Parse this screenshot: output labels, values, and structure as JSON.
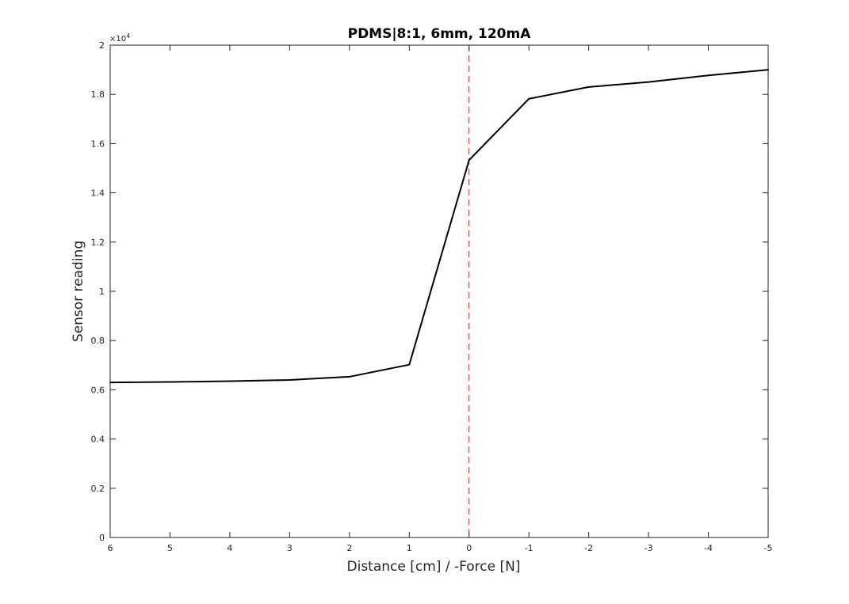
{
  "chart_data": {
    "type": "line",
    "title": "PDMS|8:1, 6mm, 120mA",
    "xlabel": "Distance [cm] / -Force [N]",
    "ylabel": "Sensor reading",
    "x_axis_reversed": true,
    "xlim": [
      -5,
      6
    ],
    "ylim": [
      0,
      20000
    ],
    "x_ticks": [
      6,
      5,
      4,
      3,
      2,
      1,
      0,
      -1,
      -2,
      -3,
      -4,
      -5
    ],
    "x_tick_labels": [
      "6",
      "5",
      "4",
      "3",
      "2",
      "1",
      "0",
      "-1",
      "-2",
      "-3",
      "-4",
      "-5"
    ],
    "y_ticks": [
      0,
      2000,
      4000,
      6000,
      8000,
      10000,
      12000,
      14000,
      16000,
      18000,
      20000
    ],
    "y_tick_labels": [
      "0",
      "0.2",
      "0.4",
      "0.6",
      "0.8",
      "1",
      "1.2",
      "1.4",
      "1.6",
      "1.8",
      "2"
    ],
    "y_exponent_label": "×10",
    "y_exponent_power": "4",
    "grid": false,
    "series": [
      {
        "x": [
          6,
          5,
          4,
          3,
          2,
          1,
          0,
          -1,
          -2,
          -3,
          -4,
          -5
        ],
        "y": [
          6300,
          6320,
          6350,
          6400,
          6530,
          7020,
          15330,
          17820,
          18300,
          18500,
          18770,
          19000
        ],
        "color": "#000000"
      }
    ],
    "reference_line": {
      "x": 0,
      "color": "#ff0000",
      "style": "dashed"
    }
  }
}
